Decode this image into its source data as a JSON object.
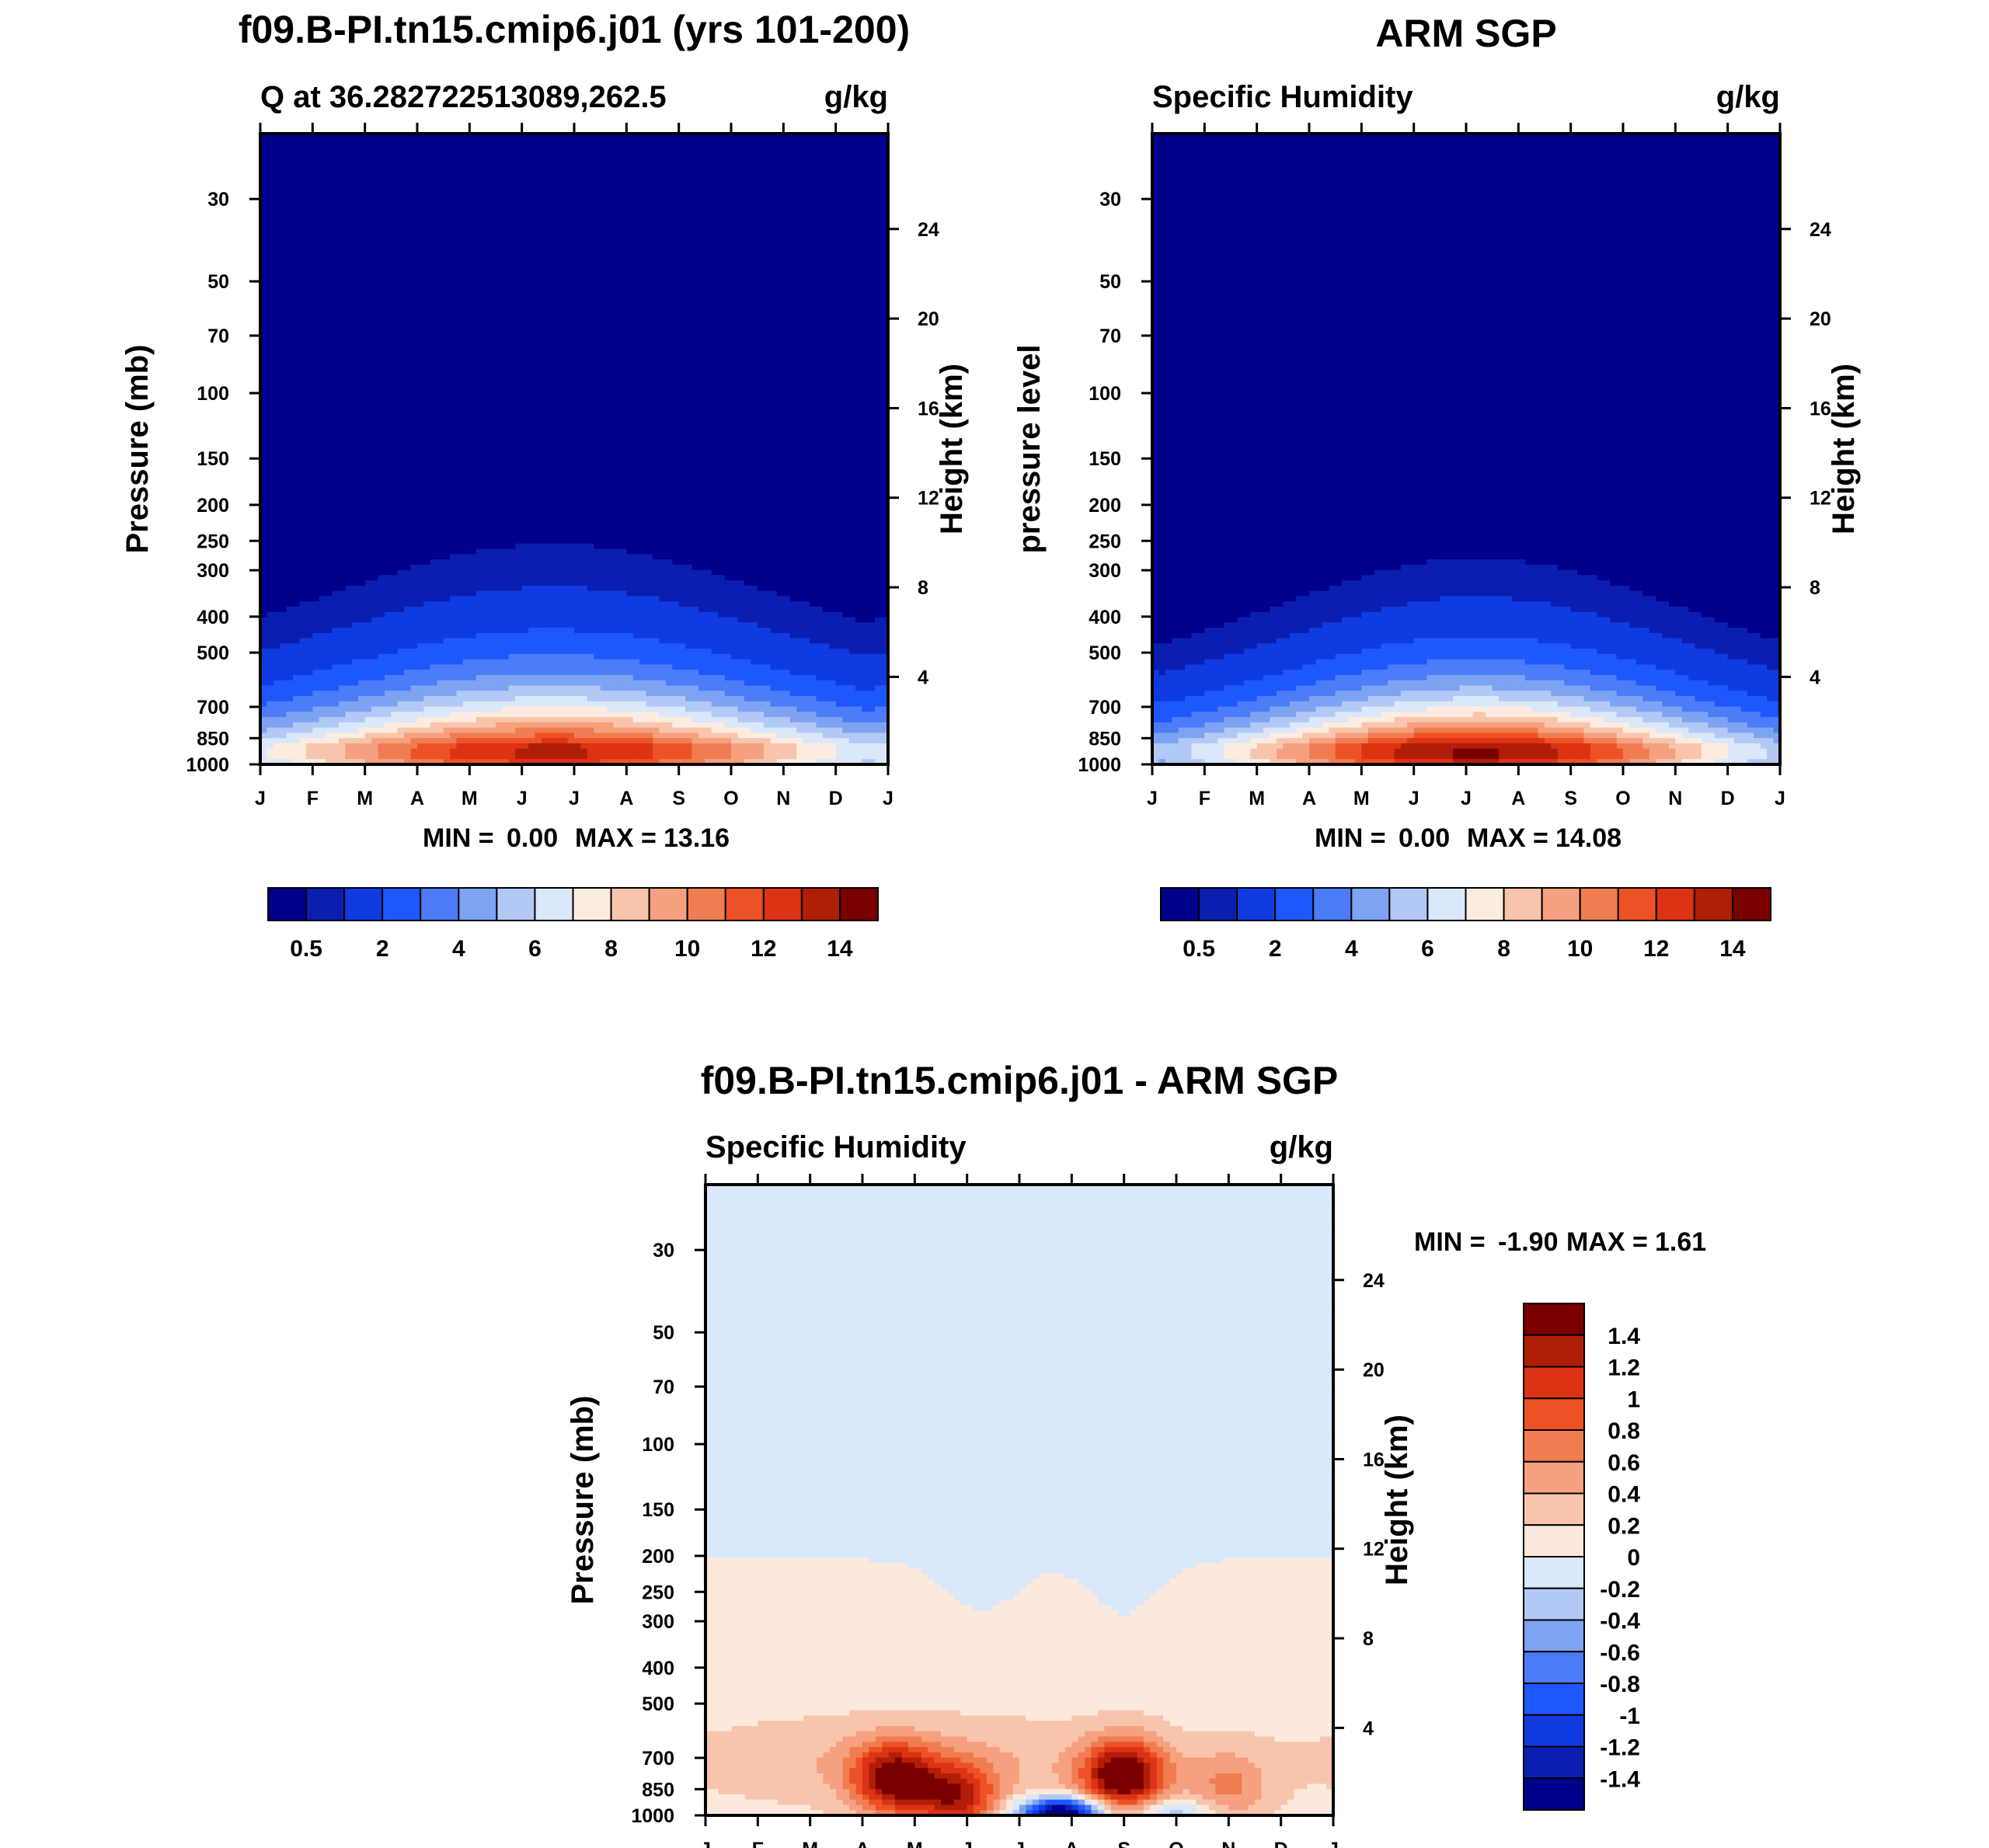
{
  "chart_data": [
    {
      "type": "heatmap",
      "title": "f09.B-PI.tn15.cmip6.j01 (yrs 101-200)",
      "subtitle_left": "Q at 36.282722513089,262.5",
      "subtitle_right": "g/kg",
      "ylabel_left": "Pressure (mb)",
      "ylabel_right": "Height (km)",
      "x_ticks": [
        "J",
        "F",
        "M",
        "A",
        "M",
        "J",
        "J",
        "A",
        "S",
        "O",
        "N",
        "D",
        "J"
      ],
      "pressure_ticks": [
        "30",
        "50",
        "70",
        "100",
        "150",
        "200",
        "250",
        "300",
        "400",
        "500",
        "700",
        "850",
        "1000"
      ],
      "height_ticks": [
        "24",
        "20",
        "16",
        "12",
        "8",
        "4"
      ],
      "ylim_mb": [
        1000,
        20
      ],
      "stats": {
        "min_label": "MIN =",
        "min": "0.00",
        "max_label": "MAX =",
        "max": "13.16"
      },
      "colorbar": {
        "orientation": "horizontal",
        "labels": [
          "0.5",
          "2",
          "4",
          "6",
          "8",
          "10",
          "12",
          "14"
        ]
      },
      "field_profile": {
        "peak": 13.16,
        "peak_month": 5.6,
        "seasonal_halfwidth": 3.8,
        "winter_surface": 3.5,
        "scale_height_km": 2.3
      }
    },
    {
      "type": "heatmap",
      "title": "ARM SGP",
      "subtitle_left": "Specific Humidity",
      "subtitle_right": "g/kg",
      "ylabel_left": "pressure level",
      "ylabel_right": "Height (km)",
      "x_ticks": [
        "J",
        "F",
        "M",
        "A",
        "M",
        "J",
        "J",
        "A",
        "S",
        "O",
        "N",
        "D",
        "J"
      ],
      "pressure_ticks": [
        "30",
        "50",
        "70",
        "100",
        "150",
        "200",
        "250",
        "300",
        "400",
        "500",
        "700",
        "850",
        "1000"
      ],
      "height_ticks": [
        "24",
        "20",
        "16",
        "12",
        "8",
        "4"
      ],
      "ylim_mb": [
        1000,
        20
      ],
      "stats": {
        "min_label": "MIN =",
        "min": "0.00",
        "max_label": "MAX =",
        "max": "14.08"
      },
      "colorbar": {
        "orientation": "horizontal",
        "labels": [
          "0.5",
          "2",
          "4",
          "6",
          "8",
          "10",
          "12",
          "14"
        ]
      },
      "field_profile": {
        "peak": 14.08,
        "peak_month": 6.2,
        "seasonal_halfwidth": 3.4,
        "winter_surface": 3.0,
        "scale_height_km": 2.1
      }
    },
    {
      "type": "heatmap",
      "title": "f09.B-PI.tn15.cmip6.j01 - ARM SGP",
      "subtitle_left": "Specific Humidity",
      "subtitle_right": "g/kg",
      "ylabel_left": "Pressure (mb)",
      "ylabel_right": "Height (km)",
      "x_ticks": [
        "J",
        "F",
        "M",
        "A",
        "M",
        "J",
        "J",
        "A",
        "S",
        "O",
        "N",
        "D",
        "J"
      ],
      "pressure_ticks": [
        "30",
        "50",
        "70",
        "100",
        "150",
        "200",
        "250",
        "300",
        "400",
        "500",
        "700",
        "850",
        "1000"
      ],
      "height_ticks": [
        "24",
        "20",
        "16",
        "12",
        "8",
        "4"
      ],
      "ylim_mb": [
        1000,
        20
      ],
      "stats": {
        "min_label": "MIN =",
        "min": "-1.90",
        "max_label": "MAX =",
        "max": "1.61"
      },
      "colorbar": {
        "orientation": "vertical",
        "labels": [
          "1.4",
          "1.2",
          "1",
          "0.8",
          "0.6",
          "0.4",
          "0.2",
          "0",
          "-0.2",
          "-0.4",
          "-0.6",
          "-0.8",
          "-1",
          "-1.2",
          "-1.4"
        ]
      },
      "difference_features": [
        {
          "month": 3.6,
          "pressure_mb": 800,
          "value": 1.3
        },
        {
          "month": 4.8,
          "pressure_mb": 900,
          "value": 1.1
        },
        {
          "month": 8.0,
          "pressure_mb": 780,
          "value": 1.61
        },
        {
          "month": 10.0,
          "pressure_mb": 830,
          "value": 0.5
        },
        {
          "month": 6.8,
          "pressure_mb": 980,
          "value": -1.9
        },
        {
          "month": 8.9,
          "pressure_mb": 980,
          "value": -0.5
        }
      ]
    }
  ],
  "colors": {
    "abs_scale": [
      "#00008b",
      "#0a1fb0",
      "#0f3be0",
      "#1f57ff",
      "#4c7cf7",
      "#7ea3f2",
      "#b3c9f5",
      "#dbe7fa",
      "#fcece0",
      "#f8c5ac",
      "#f5a07e",
      "#f07d52",
      "#ec5225",
      "#dc3315",
      "#b11e08",
      "#7a0000"
    ],
    "diff_scale": [
      "#00008b",
      "#0a1fb0",
      "#0f3be0",
      "#1f57ff",
      "#4c7cf7",
      "#7ea3f2",
      "#b3c9f5",
      "#d9e8fb",
      "#fce9dc",
      "#f8c5ac",
      "#f5a07e",
      "#f07d52",
      "#ec5225",
      "#dc3315",
      "#b11e08",
      "#7a0000"
    ]
  }
}
